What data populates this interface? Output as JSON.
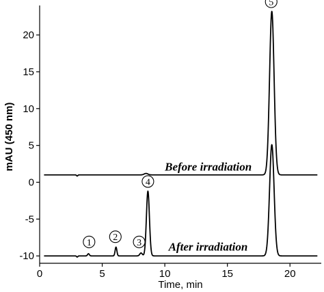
{
  "chart_data": {
    "type": "line",
    "xlabel": "Time, min",
    "ylabel": "mAU (450 nm)",
    "xlim": [
      0,
      22.5
    ],
    "ylim": [
      -11,
      24
    ],
    "xticks": [
      0,
      5,
      10,
      15,
      20
    ],
    "yticks": [
      -10,
      -5,
      0,
      5,
      10,
      15,
      20
    ],
    "series": [
      {
        "name": "Before irradiation",
        "baseline": 1.0,
        "peaks": [
          {
            "x": 3.0,
            "height": -0.15,
            "width": 0.05
          },
          {
            "x": 8.5,
            "height": 0.2,
            "width": 0.15
          },
          {
            "x": 18.55,
            "height": 22.2,
            "width": 0.18
          }
        ]
      },
      {
        "name": "After irradiation",
        "baseline": -10.0,
        "peaks": [
          {
            "x": 3.0,
            "height": -0.15,
            "width": 0.05
          },
          {
            "x": 3.9,
            "height": 0.3,
            "width": 0.07
          },
          {
            "x": 6.1,
            "height": 1.2,
            "width": 0.07
          },
          {
            "x": 8.1,
            "height": 0.4,
            "width": 0.1
          },
          {
            "x": 8.65,
            "height": 8.8,
            "width": 0.12
          },
          {
            "x": 18.55,
            "height": 15.1,
            "width": 0.18
          }
        ]
      }
    ],
    "annotations": [
      {
        "text": "Before irradiation",
        "x": 10.0,
        "y": 1.6
      },
      {
        "text": "After irradiation",
        "x": 10.3,
        "y": -9.3
      }
    ],
    "peak_markers": [
      {
        "label": "1",
        "x": 3.95,
        "y": -8.1
      },
      {
        "label": "2",
        "x": 6.05,
        "y": -7.4
      },
      {
        "label": "3",
        "x": 7.95,
        "y": -8.1
      },
      {
        "label": "4",
        "x": 8.65,
        "y": 0.1
      },
      {
        "label": "5",
        "x": 18.5,
        "y": 24.5
      }
    ]
  }
}
